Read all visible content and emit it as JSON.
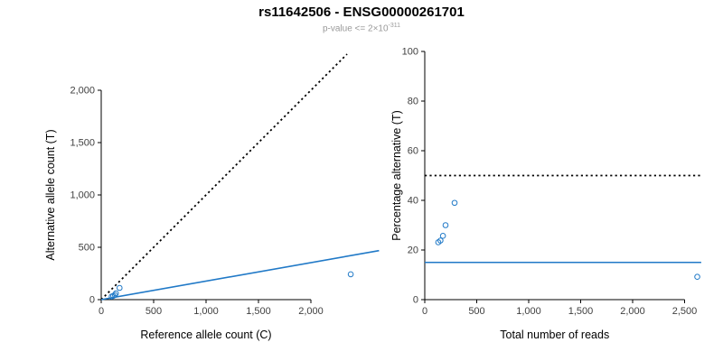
{
  "header": {
    "title": "rs11642506 - ENSG00000261701",
    "subtitle_base": "p-value <= 2×10",
    "subtitle_exponent": "-311"
  },
  "colors": {
    "accent_blue": "#2079c7",
    "dotted_black": "#000000",
    "axis": "#000000",
    "tick_label": "#404040",
    "axis_title": "#000000",
    "subtitle_gray": "#999999",
    "background": "#ffffff"
  },
  "chart_data": [
    {
      "type": "scatter",
      "title": "",
      "xlabel": "Reference allele count (C)",
      "ylabel": "Alternative allele count (T)",
      "xlim": [
        0,
        2650
      ],
      "ylim": [
        0,
        2345
      ],
      "grid": false,
      "legend": false,
      "xticks": {
        "values": [
          0,
          500,
          1000,
          1500,
          2000
        ],
        "labels": [
          "0",
          "500",
          "1,000",
          "1,500",
          "2,000"
        ]
      },
      "yticks": {
        "values": [
          0,
          500,
          1000,
          1500,
          2000
        ],
        "labels": [
          "0",
          "500",
          "1,000",
          "1,500",
          "2,000"
        ]
      },
      "points": [
        [
          100,
          30
        ],
        [
          115,
          36
        ],
        [
          130,
          45
        ],
        [
          140,
          60
        ],
        [
          175,
          112
        ],
        [
          2380,
          242
        ]
      ],
      "lines": [
        {
          "name": "identity-line",
          "style": "dotted",
          "color": "#000000",
          "x": [
            0,
            2345
          ],
          "y": [
            0,
            2345
          ]
        },
        {
          "name": "fit-line",
          "style": "solid",
          "color": "#2079c7",
          "x": [
            0,
            2650
          ],
          "y": [
            0,
            468
          ]
        }
      ]
    },
    {
      "type": "scatter",
      "title": "",
      "xlabel": "Total number of reads",
      "ylabel": "Percentage alternative (T)",
      "xlim": [
        0,
        2700
      ],
      "ylim": [
        0,
        100
      ],
      "grid": false,
      "legend": false,
      "xticks": {
        "values": [
          0,
          500,
          1000,
          1500,
          2000,
          2500
        ],
        "labels": [
          "0",
          "500",
          "1,000",
          "1,500",
          "2,000",
          "2,500"
        ]
      },
      "yticks": {
        "values": [
          0,
          20,
          40,
          60,
          80,
          100
        ],
        "labels": [
          "0",
          "20",
          "40",
          "60",
          "80",
          "100"
        ]
      },
      "points": [
        [
          130,
          23.1
        ],
        [
          151,
          23.8
        ],
        [
          175,
          25.7
        ],
        [
          200,
          30
        ],
        [
          287,
          39
        ],
        [
          2622,
          9.2
        ]
      ],
      "lines": [
        {
          "name": "expected-50pct-line",
          "style": "dotted",
          "color": "#000000",
          "x": [
            0,
            2660
          ],
          "y": [
            50,
            50
          ]
        },
        {
          "name": "fit-15pct-line",
          "style": "solid",
          "color": "#2079c7",
          "x": [
            0,
            2660
          ],
          "y": [
            15,
            15
          ]
        }
      ]
    }
  ]
}
